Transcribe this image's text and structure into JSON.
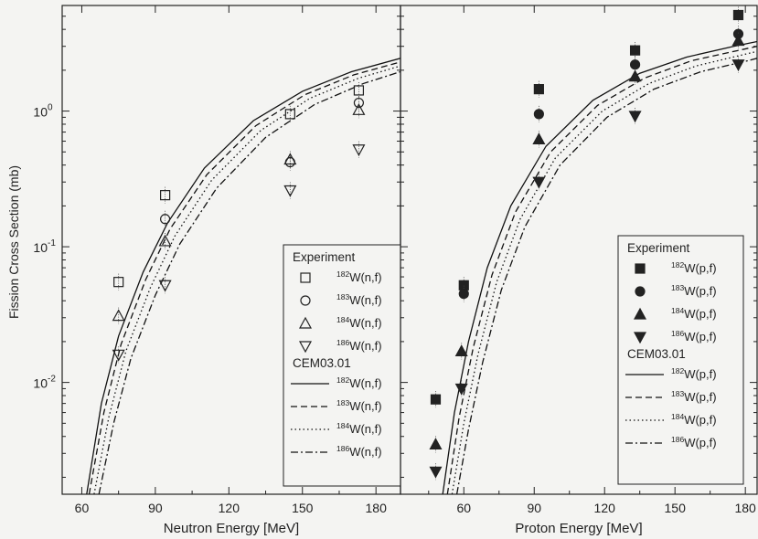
{
  "figure": {
    "ylabel": "Fission Cross Section (mb)"
  },
  "chart_data": [
    {
      "type": "scatter",
      "xlabel": "Neutron Energy [MeV]",
      "ylabel": "Fission Cross Section (mb)",
      "x_ticks": [
        60,
        90,
        120,
        150,
        180
      ],
      "y_ticks": [
        0.01,
        0.1,
        1
      ],
      "y_tick_labels": [
        "10",
        "10",
        "10"
      ],
      "y_tick_exponents": [
        "-2",
        "-1",
        "0"
      ],
      "xlim": [
        52,
        190
      ],
      "ylim": [
        0.0015,
        6
      ],
      "y_scale": "log",
      "legend_position": "right",
      "legend": {
        "experiment_title": "Experiment",
        "model_title": "CEM03.01",
        "entries_experiment": [
          {
            "pre": "182",
            "post": "W(n,f)"
          },
          {
            "pre": "183",
            "post": "W(n,f)"
          },
          {
            "pre": "184",
            "post": "W(n,f)"
          },
          {
            "pre": "186",
            "post": "W(n,f)"
          }
        ],
        "entries_model": [
          {
            "pre": "182",
            "post": "W(n,f)"
          },
          {
            "pre": "183",
            "post": "W(n,f)"
          },
          {
            "pre": "184",
            "post": "W(n,f)"
          },
          {
            "pre": "186",
            "post": "W(n,f)"
          }
        ]
      },
      "series": [
        {
          "isotope": "182",
          "marker": "square-open",
          "x": [
            75,
            94,
            145,
            173
          ],
          "y": [
            0.055,
            0.24,
            0.95,
            1.42
          ]
        },
        {
          "isotope": "183",
          "marker": "circle-open",
          "x": [
            94,
            145,
            173
          ],
          "y": [
            0.16,
            0.42,
            1.15
          ]
        },
        {
          "isotope": "184",
          "marker": "triangle-up-open",
          "x": [
            75,
            94,
            145,
            173
          ],
          "y": [
            0.031,
            0.11,
            0.44,
            1.02
          ]
        },
        {
          "isotope": "186",
          "marker": "triangle-down-open",
          "x": [
            75,
            94,
            145,
            173
          ],
          "y": [
            0.016,
            0.052,
            0.26,
            0.52
          ]
        }
      ],
      "curves": [
        {
          "isotope": "182",
          "style": "solid",
          "x": [
            62,
            68,
            75,
            85,
            95,
            110,
            130,
            150,
            170,
            190
          ],
          "y": [
            0.0015,
            0.007,
            0.022,
            0.065,
            0.15,
            0.38,
            0.85,
            1.4,
            1.95,
            2.45
          ]
        },
        {
          "isotope": "183",
          "style": "dashed",
          "x": [
            63,
            69,
            76,
            86,
            96,
            111,
            131,
            151,
            171,
            190
          ],
          "y": [
            0.0015,
            0.006,
            0.019,
            0.057,
            0.135,
            0.34,
            0.78,
            1.32,
            1.85,
            2.3
          ]
        },
        {
          "isotope": "184",
          "style": "dotted",
          "x": [
            65,
            71,
            78,
            88,
            98,
            113,
            133,
            153,
            173,
            190
          ],
          "y": [
            0.0015,
            0.0055,
            0.017,
            0.05,
            0.12,
            0.31,
            0.72,
            1.24,
            1.75,
            2.15
          ]
        },
        {
          "isotope": "186",
          "style": "dashdot",
          "x": [
            67,
            73,
            80,
            90,
            100,
            115,
            135,
            155,
            175,
            190
          ],
          "y": [
            0.0015,
            0.005,
            0.015,
            0.044,
            0.105,
            0.27,
            0.64,
            1.12,
            1.6,
            1.95
          ]
        }
      ]
    },
    {
      "type": "scatter",
      "xlabel": "Proton Energy [MeV]",
      "ylabel": "Fission Cross Section (mb)",
      "x_ticks": [
        60,
        90,
        120,
        150,
        180
      ],
      "xlim": [
        33,
        185
      ],
      "ylim": [
        0.0015,
        6
      ],
      "y_scale": "log",
      "legend_position": "right",
      "legend": {
        "experiment_title": "Experiment",
        "model_title": "CEM03.01",
        "entries_experiment": [
          {
            "pre": "182",
            "post": "W(p,f)"
          },
          {
            "pre": "183",
            "post": "W(p,f)"
          },
          {
            "pre": "184",
            "post": "W(p,f)"
          },
          {
            "pre": "186",
            "post": "W(p,f)"
          }
        ],
        "entries_model": [
          {
            "pre": "182",
            "post": "W(p,f)"
          },
          {
            "pre": "183",
            "post": "W(p,f)"
          },
          {
            "pre": "184",
            "post": "W(p,f)"
          },
          {
            "pre": "186",
            "post": "W(p,f)"
          }
        ]
      },
      "series": [
        {
          "isotope": "182",
          "marker": "square-filled",
          "x": [
            48,
            60,
            92,
            133,
            177
          ],
          "y": [
            0.0075,
            0.052,
            1.45,
            2.8,
            5.1
          ]
        },
        {
          "isotope": "183",
          "marker": "circle-filled",
          "x": [
            60,
            92,
            133,
            177
          ],
          "y": [
            0.045,
            0.95,
            2.2,
            3.7
          ]
        },
        {
          "isotope": "184",
          "marker": "triangle-up-filled",
          "x": [
            48,
            59,
            92,
            133,
            177
          ],
          "y": [
            0.0035,
            0.017,
            0.62,
            1.8,
            3.3
          ]
        },
        {
          "isotope": "186",
          "marker": "triangle-down-filled",
          "x": [
            48,
            59,
            92,
            133,
            177
          ],
          "y": [
            0.0022,
            0.009,
            0.3,
            0.92,
            2.2
          ]
        }
      ],
      "curves": [
        {
          "isotope": "182",
          "style": "solid",
          "x": [
            51,
            56,
            62,
            70,
            80,
            95,
            115,
            135,
            155,
            175,
            185
          ],
          "y": [
            0.0015,
            0.006,
            0.02,
            0.07,
            0.2,
            0.55,
            1.2,
            1.9,
            2.5,
            3.0,
            3.25
          ]
        },
        {
          "isotope": "183",
          "style": "dashed",
          "x": [
            53,
            58,
            64,
            72,
            82,
            97,
            117,
            137,
            157,
            177,
            185
          ],
          "y": [
            0.0015,
            0.0055,
            0.018,
            0.062,
            0.18,
            0.5,
            1.1,
            1.75,
            2.35,
            2.8,
            3.0
          ]
        },
        {
          "isotope": "184",
          "style": "dotted",
          "x": [
            55,
            60,
            66,
            74,
            84,
            99,
            119,
            139,
            159,
            179,
            185
          ],
          "y": [
            0.0015,
            0.005,
            0.016,
            0.055,
            0.16,
            0.45,
            1.0,
            1.6,
            2.15,
            2.6,
            2.75
          ]
        },
        {
          "isotope": "186",
          "style": "dashdot",
          "x": [
            57,
            62,
            68,
            76,
            86,
            101,
            121,
            141,
            161,
            181,
            185
          ],
          "y": [
            0.0015,
            0.0045,
            0.014,
            0.048,
            0.14,
            0.4,
            0.9,
            1.45,
            1.95,
            2.35,
            2.45
          ]
        }
      ]
    }
  ]
}
